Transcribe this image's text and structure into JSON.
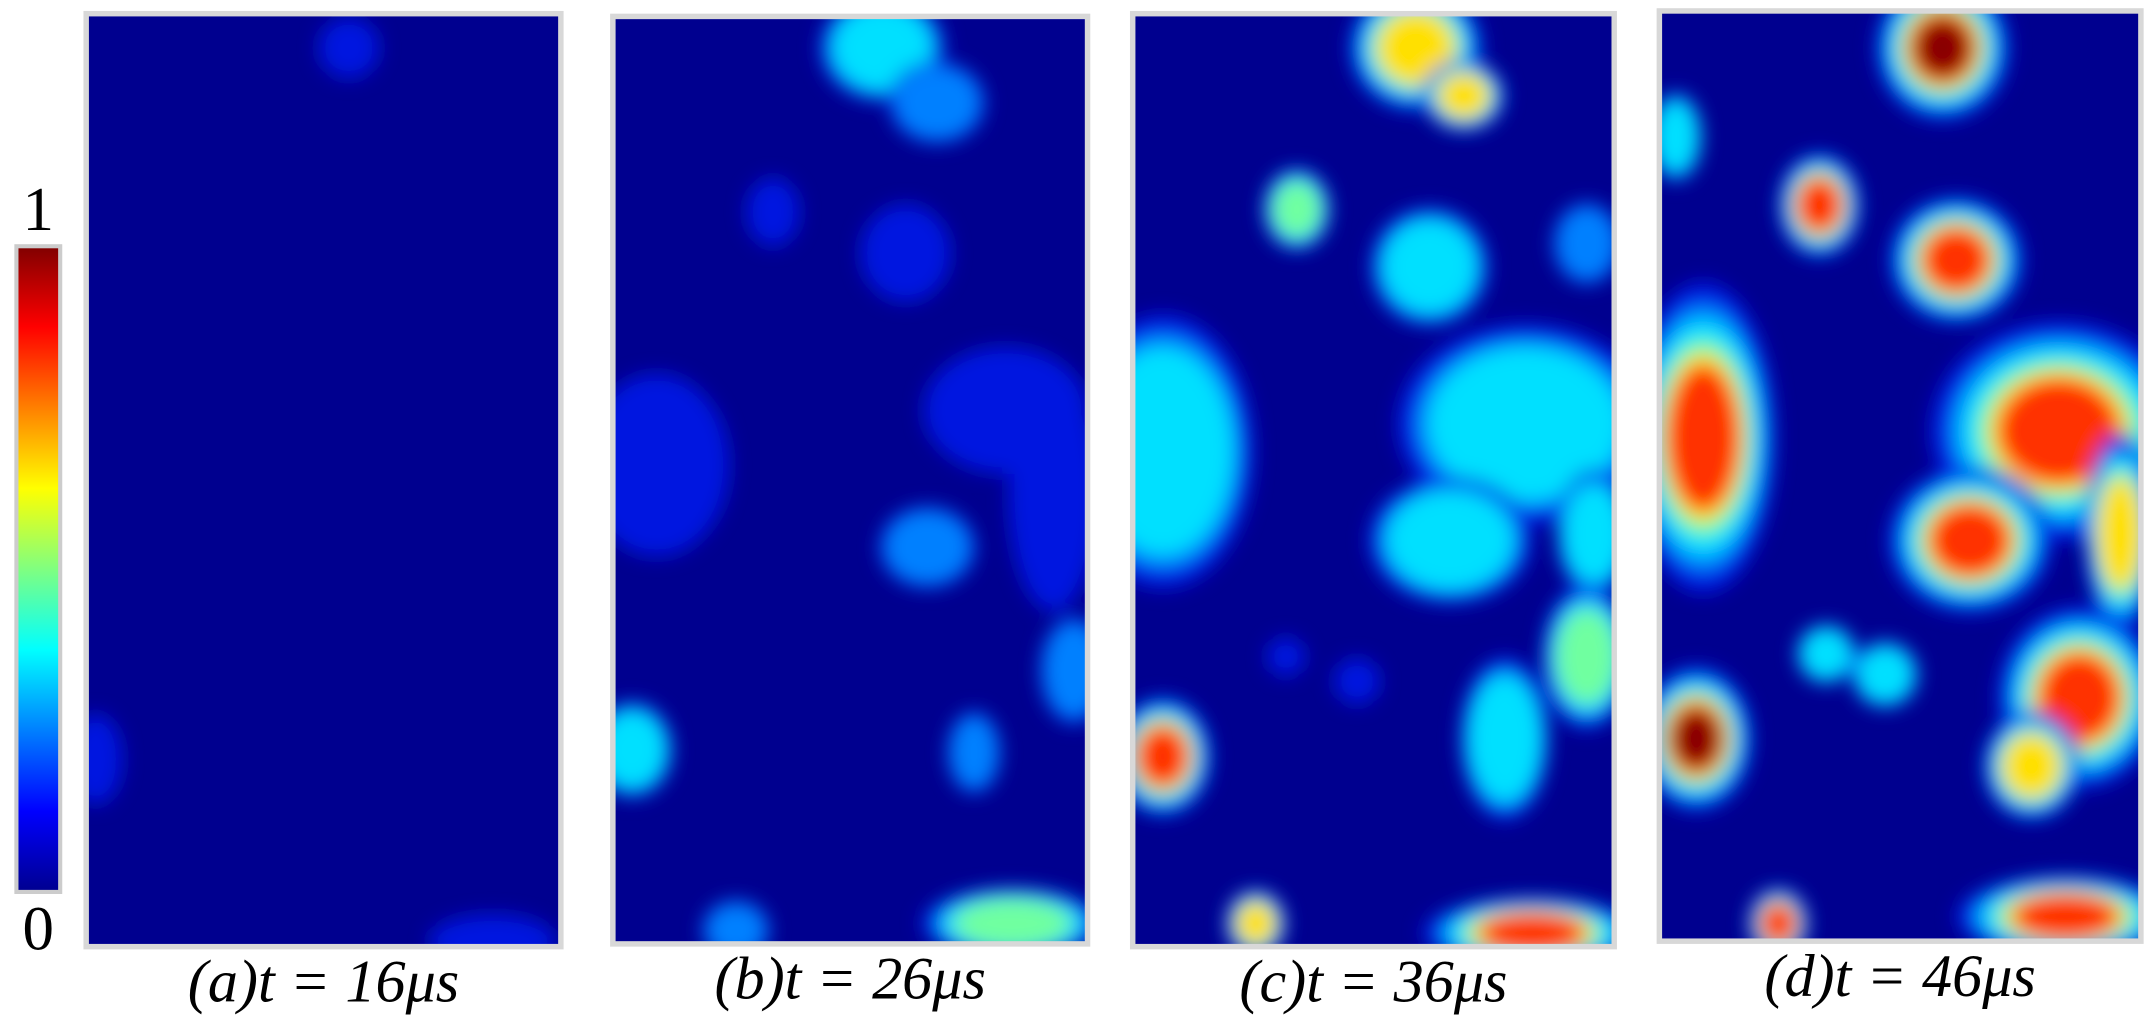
{
  "colorbar": {
    "max_label": "1",
    "min_label": "0"
  },
  "panels": [
    {
      "caption": "(a)t = 16μs"
    },
    {
      "caption": "(b)t = 26μs"
    },
    {
      "caption": "(c)t = 36μs"
    },
    {
      "caption": "(d)t = 46μs"
    }
  ]
}
